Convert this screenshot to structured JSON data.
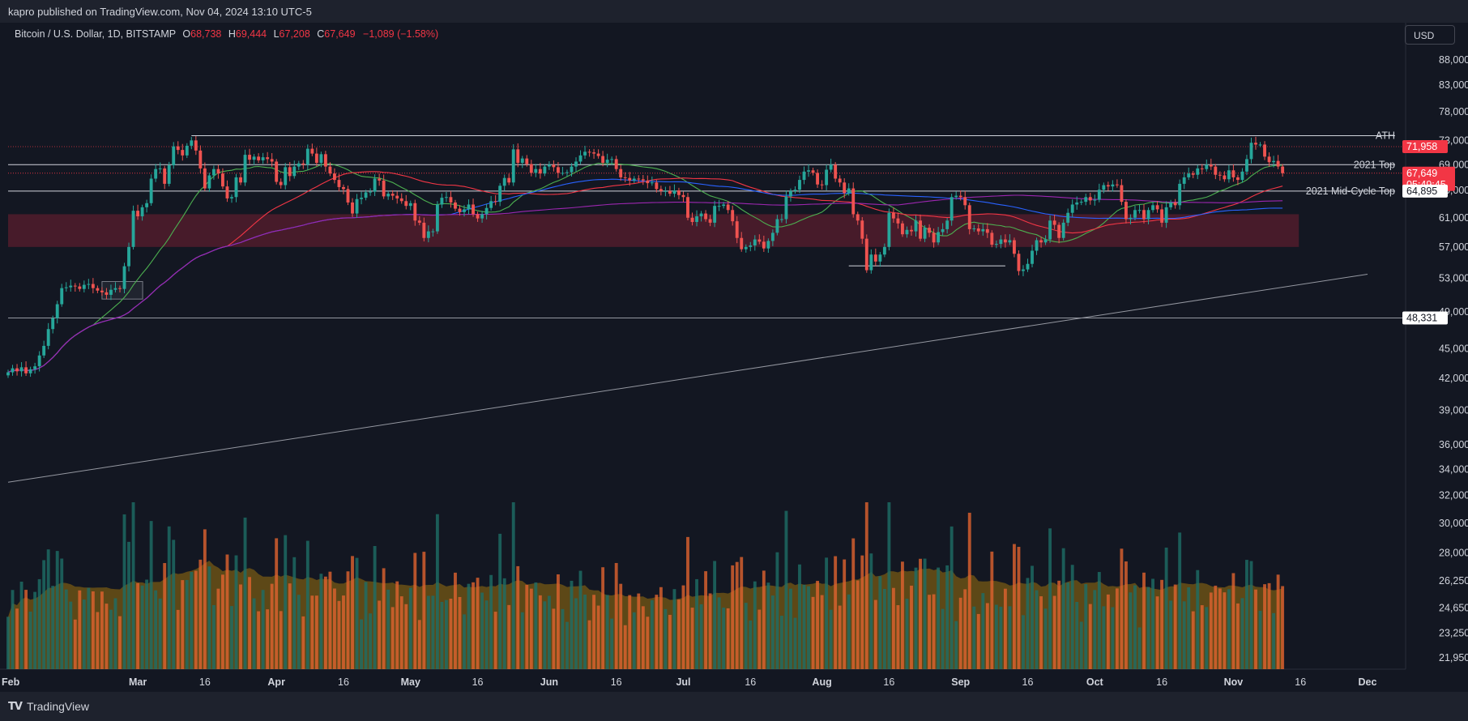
{
  "header": {
    "published": "kapro published on TradingView.com, Nov 04, 2024 13:10 UTC-5"
  },
  "legend": {
    "symbol": "Bitcoin / U.S. Dollar, 1D, BITSTAMP",
    "o_label": "O",
    "o_value": "68,738",
    "h_label": "H",
    "h_value": "69,444",
    "l_label": "L",
    "l_value": "67,208",
    "c_label": "C",
    "c_value": "67,649",
    "change": "−1,089 (−1.58%)"
  },
  "currency_button": "USD",
  "footer": {
    "brand": "TradingView",
    "logo": "TV"
  },
  "colors": {
    "background": "#131722",
    "up": "#26a69a",
    "down": "#ef5350",
    "ma_green": "#4caf50",
    "ma_red": "#f23645",
    "ma_blue": "#2962ff",
    "ma_purple": "#9c27b0",
    "zone": "#5a1e2e",
    "volume_avg": "#b8860b"
  },
  "chart_data": {
    "type": "candlestick",
    "symbol": "BTCUSD",
    "exchange": "BITSTAMP",
    "interval": "1D",
    "x_start": "2024-02-01",
    "x_labels": [
      "Feb",
      "Mar",
      "16",
      "Apr",
      "16",
      "May",
      "16",
      "Jun",
      "16",
      "Jul",
      "16",
      "Aug",
      "16",
      "Sep",
      "16",
      "Oct",
      "16",
      "Nov",
      "16",
      "Dec"
    ],
    "x_label_dates": [
      "2024-02-01",
      "2024-03-01",
      "2024-03-16",
      "2024-04-01",
      "2024-04-16",
      "2024-05-01",
      "2024-05-16",
      "2024-06-01",
      "2024-06-16",
      "2024-07-01",
      "2024-07-16",
      "2024-08-01",
      "2024-08-16",
      "2024-09-01",
      "2024-09-16",
      "2024-10-01",
      "2024-10-16",
      "2024-11-01",
      "2024-11-16",
      "2024-12-01"
    ],
    "y_scale": "log",
    "price_ticks": [
      "88,000",
      "83,000",
      "78,000",
      "73,000",
      "69,000",
      "65,000",
      "61,000",
      "57,000",
      "53,000",
      "49,000",
      "45,000",
      "42,000",
      "39,000",
      "36,000",
      "34,000",
      "32,000",
      "30,000",
      "28,000",
      "26,250",
      "24,650",
      "23,250",
      "21,950"
    ],
    "price_tick_values": [
      88000,
      83000,
      78000,
      73000,
      69000,
      65000,
      61000,
      57000,
      53000,
      49000,
      45000,
      42000,
      39000,
      36000,
      34000,
      32000,
      30000,
      28000,
      26250,
      24650,
      23250,
      21950
    ],
    "levels": [
      {
        "label": "ATH",
        "value": 73800
      },
      {
        "label": "2021 Top",
        "value": 69000
      },
      {
        "label": "2021 Mid-Cycle Top",
        "value": 64895
      }
    ],
    "price_badges": [
      {
        "text": "71,958",
        "value": 71958,
        "style": "red"
      },
      {
        "text": "67,649",
        "sub": "05:49:45",
        "value": 67649,
        "style": "red"
      },
      {
        "text": "64,895",
        "value": 64895,
        "style": "white"
      },
      {
        "text": "48,331",
        "value": 48331,
        "style": "white"
      }
    ],
    "support_zone": {
      "from": 57000,
      "to": 61500
    },
    "horizontal_line": 48331,
    "trendline": [
      {
        "date": "2024-02-01",
        "value": 33000
      },
      {
        "date": "2024-12-01",
        "value": 53500
      }
    ],
    "closes": [
      42600,
      43000,
      42700,
      43100,
      42500,
      42900,
      43200,
      44300,
      45300,
      47100,
      48300,
      49900,
      51800,
      51900,
      52100,
      52000,
      51700,
      52200,
      52300,
      51800,
      51500,
      51300,
      51000,
      51600,
      51800,
      51700,
      54500,
      57000,
      62000,
      61200,
      62500,
      63100,
      66800,
      68300,
      68400,
      66000,
      68900,
      72000,
      71400,
      70500,
      72100,
      73000,
      71300,
      68400,
      65300,
      67300,
      68300,
      67600,
      65600,
      63800,
      64000,
      67000,
      66200,
      70600,
      69800,
      70300,
      69700,
      70200,
      69900,
      69500,
      66300,
      65800,
      68600,
      67200,
      68700,
      69200,
      69000,
      71600,
      70800,
      69300,
      70700,
      68700,
      67600,
      66600,
      65500,
      65200,
      63200,
      61600,
      63700,
      63900,
      64700,
      64800,
      66800,
      66500,
      64100,
      64500,
      64200,
      63800,
      63400,
      62700,
      63100,
      60600,
      60300,
      58200,
      59100,
      59100,
      62900,
      63900,
      64000,
      63200,
      62300,
      61800,
      62200,
      62900,
      61500,
      60900,
      61500,
      62400,
      63400,
      63300,
      65700,
      66900,
      66200,
      71500,
      69300,
      70000,
      69100,
      67700,
      68300,
      67600,
      68700,
      69000,
      68600,
      67700,
      67700,
      67800,
      68700,
      69500,
      70500,
      71100,
      71000,
      70800,
      70400,
      69300,
      69800,
      69900,
      68300,
      67000,
      66900,
      66500,
      66800,
      66700,
      66500,
      66100,
      66200,
      65200,
      64900,
      64900,
      64500,
      65000,
      64300,
      64000,
      61000,
      60400,
      61200,
      61600,
      60800,
      60300,
      62700,
      62700,
      62900,
      62100,
      60500,
      58200,
      56700,
      57000,
      57200,
      58000,
      57700,
      56800,
      57800,
      58900,
      60800,
      60800,
      64100,
      64900,
      65100,
      66600,
      67900,
      68100,
      67700,
      65900,
      65800,
      68200,
      69000,
      66800,
      66200,
      64600,
      65300,
      61500,
      60600,
      58100,
      54000,
      56000,
      55100,
      56000,
      57000,
      61700,
      60900,
      60200,
      58700,
      59300,
      59100,
      60600,
      58100,
      59600,
      58900,
      57600,
      59000,
      59400,
      60600,
      64000,
      64200,
      64000,
      62800,
      59400,
      59500,
      59100,
      59400,
      58900,
      57300,
      57400,
      58000,
      57600,
      57900,
      56100,
      53900,
      54100,
      54800,
      56500,
      57900,
      57600,
      58000,
      60600,
      60000,
      58200,
      60300,
      61700,
      62900,
      63200,
      63300,
      64000,
      63500,
      63600,
      65100,
      65800,
      65600,
      65900,
      65800,
      63300,
      60800,
      61000,
      62100,
      62100,
      60800,
      62100,
      62800,
      62200,
      60300,
      62500,
      63200,
      62800,
      66000,
      67000,
      67600,
      67400,
      68400,
      68300,
      69000,
      68700,
      67400,
      67300,
      66700,
      68100,
      67000,
      66600,
      67900,
      69900,
      72600,
      72300,
      72300,
      70300,
      69400,
      69600,
      68700,
      67649
    ],
    "ma_length_bars": [
      20,
      50,
      100,
      200
    ],
    "volume_scale_max": 100
  }
}
